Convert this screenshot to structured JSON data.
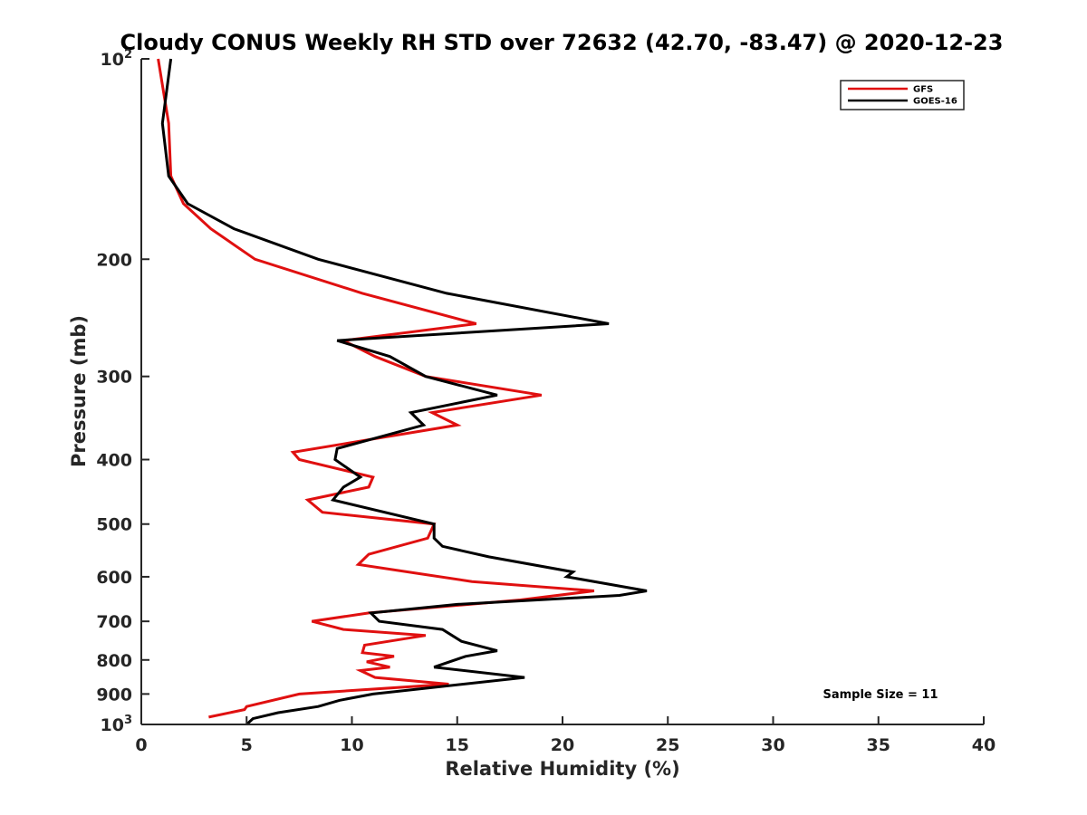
{
  "chart_data": {
    "type": "line",
    "title": "Cloudy CONUS Weekly RH STD over 72632 (42.70, -83.47) @ 2020-12-23",
    "xlabel": "Relative Humidity (%)",
    "ylabel": "Pressure (mb)",
    "xlim": [
      0,
      40
    ],
    "ylim": [
      1000,
      100
    ],
    "y_scale": "log",
    "y_reversed": true,
    "grid": false,
    "legend_position": "top-right",
    "x_ticks": [
      0,
      5,
      10,
      15,
      20,
      25,
      30,
      35,
      40
    ],
    "x_tick_labels": [
      "0",
      "5",
      "10",
      "15",
      "20",
      "25",
      "30",
      "35",
      "40"
    ],
    "y_ticks": [
      100,
      200,
      300,
      400,
      500,
      600,
      700,
      800,
      900,
      1000
    ],
    "y_tick_labels": [
      {
        "base": "10",
        "exp": "2"
      },
      {
        "base": "200",
        "exp": ""
      },
      {
        "base": "300",
        "exp": ""
      },
      {
        "base": "400",
        "exp": ""
      },
      {
        "base": "500",
        "exp": ""
      },
      {
        "base": "600",
        "exp": ""
      },
      {
        "base": "700",
        "exp": ""
      },
      {
        "base": "800",
        "exp": ""
      },
      {
        "base": "900",
        "exp": ""
      },
      {
        "base": "10",
        "exp": "3"
      }
    ],
    "annotation": "Sample Size = 11",
    "series": [
      {
        "name": "GFS",
        "color": "#e01010",
        "points": [
          [
            0.8,
            100
          ],
          [
            1.3,
            125
          ],
          [
            1.4,
            150
          ],
          [
            2.0,
            165
          ],
          [
            3.3,
            180
          ],
          [
            5.4,
            200
          ],
          [
            10.5,
            225
          ],
          [
            15.9,
            250
          ],
          [
            9.6,
            265
          ],
          [
            11.1,
            280
          ],
          [
            13.5,
            300
          ],
          [
            19.0,
            320
          ],
          [
            13.8,
            340
          ],
          [
            15.0,
            355
          ],
          [
            7.2,
            390
          ],
          [
            7.5,
            400
          ],
          [
            11.0,
            425
          ],
          [
            10.8,
            440
          ],
          [
            7.9,
            460
          ],
          [
            8.6,
            480
          ],
          [
            13.9,
            500
          ],
          [
            13.6,
            525
          ],
          [
            10.8,
            555
          ],
          [
            10.3,
            575
          ],
          [
            15.7,
            610
          ],
          [
            21.5,
            630
          ],
          [
            18.0,
            650
          ],
          [
            10.8,
            680
          ],
          [
            8.1,
            700
          ],
          [
            9.6,
            720
          ],
          [
            13.5,
            735
          ],
          [
            10.6,
            760
          ],
          [
            10.5,
            780
          ],
          [
            12.0,
            790
          ],
          [
            10.7,
            805
          ],
          [
            11.8,
            820
          ],
          [
            10.4,
            830
          ],
          [
            11.1,
            850
          ],
          [
            14.6,
            870
          ],
          [
            7.5,
            900
          ],
          [
            5.0,
            940
          ],
          [
            4.9,
            950
          ],
          [
            3.2,
            975
          ]
        ]
      },
      {
        "name": "GOES-16",
        "color": "#000000",
        "points": [
          [
            1.4,
            100
          ],
          [
            1.0,
            125
          ],
          [
            1.3,
            150
          ],
          [
            2.2,
            165
          ],
          [
            4.4,
            180
          ],
          [
            8.4,
            200
          ],
          [
            14.5,
            225
          ],
          [
            22.2,
            250
          ],
          [
            9.3,
            265
          ],
          [
            11.8,
            280
          ],
          [
            13.5,
            300
          ],
          [
            16.9,
            320
          ],
          [
            12.8,
            340
          ],
          [
            13.4,
            355
          ],
          [
            9.3,
            385
          ],
          [
            9.2,
            400
          ],
          [
            10.4,
            425
          ],
          [
            9.6,
            440
          ],
          [
            9.1,
            460
          ],
          [
            13.9,
            500
          ],
          [
            13.9,
            525
          ],
          [
            14.3,
            540
          ],
          [
            16.5,
            560
          ],
          [
            20.5,
            590
          ],
          [
            20.2,
            600
          ],
          [
            24.0,
            630
          ],
          [
            22.7,
            640
          ],
          [
            15.0,
            660
          ],
          [
            10.9,
            680
          ],
          [
            11.3,
            700
          ],
          [
            14.3,
            720
          ],
          [
            15.2,
            750
          ],
          [
            16.9,
            775
          ],
          [
            15.4,
            790
          ],
          [
            13.9,
            820
          ],
          [
            18.2,
            850
          ],
          [
            11.0,
            900
          ],
          [
            9.4,
            920
          ],
          [
            8.4,
            940
          ],
          [
            6.5,
            960
          ],
          [
            5.3,
            980
          ],
          [
            5.0,
            1000
          ]
        ]
      }
    ]
  }
}
